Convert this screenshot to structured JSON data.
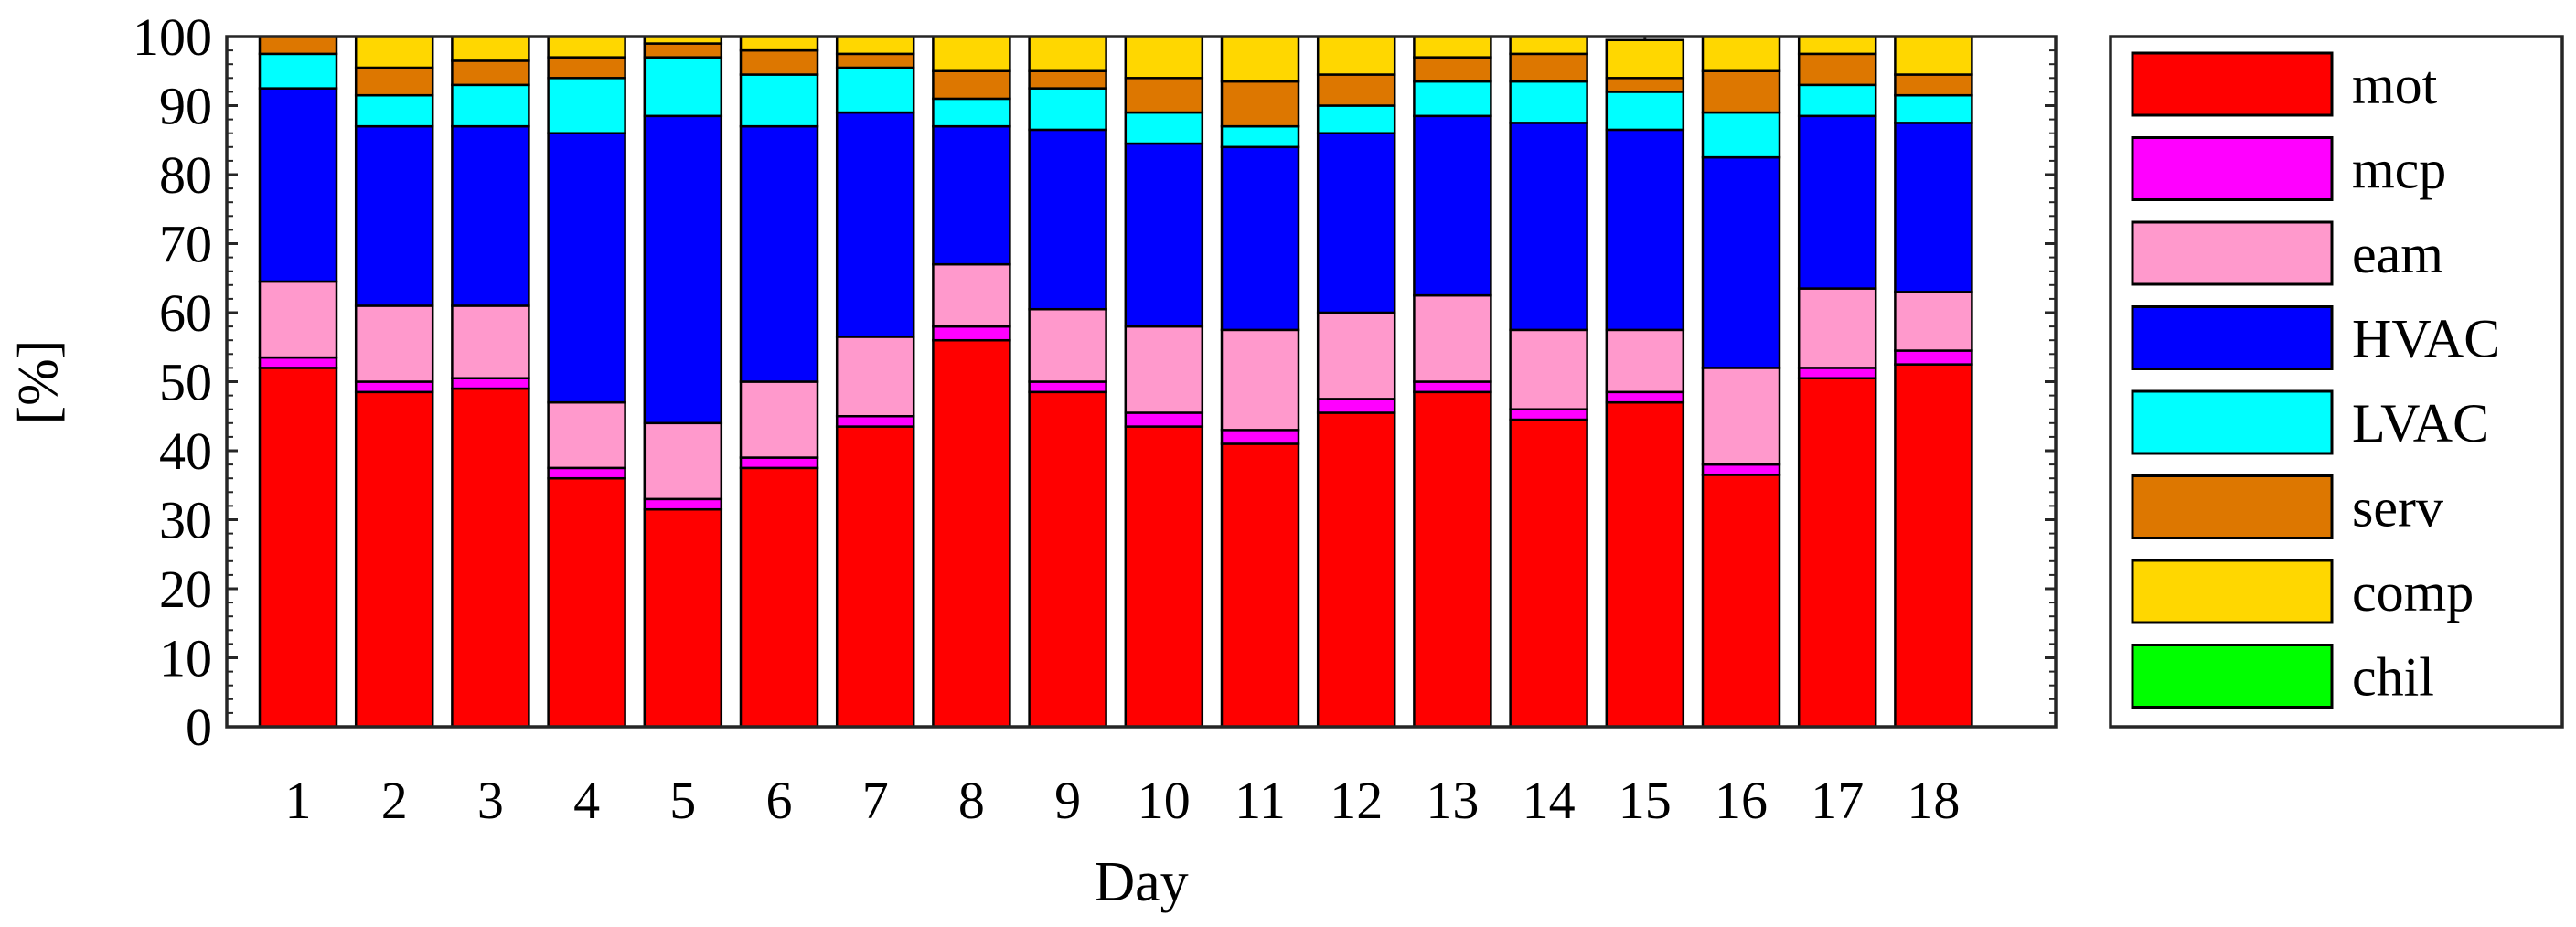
{
  "chart_data": {
    "type": "bar",
    "stacked": true,
    "title": "",
    "xlabel": "Day",
    "ylabel": "[%]",
    "ylim": [
      0,
      100
    ],
    "yticks": [
      "0",
      "10",
      "20",
      "30",
      "40",
      "50",
      "60",
      "70",
      "80",
      "90",
      "100"
    ],
    "categories": [
      "1",
      "2",
      "3",
      "4",
      "5",
      "6",
      "7",
      "8",
      "9",
      "10",
      "11",
      "12",
      "13",
      "14",
      "15",
      "16",
      "17",
      "18"
    ],
    "legend_position": "outside-right",
    "series": [
      {
        "name": "mot",
        "color": "#ff0000",
        "values": [
          52,
          48.5,
          49,
          36,
          31.5,
          37.5,
          43.5,
          56,
          48.5,
          43.5,
          41,
          45.5,
          48.5,
          44.5,
          47,
          36.5,
          50.5,
          52.5
        ]
      },
      {
        "name": "mcp",
        "color": "#ff00ff",
        "values": [
          1.5,
          1.5,
          1.5,
          1.5,
          1.5,
          1.5,
          1.5,
          2,
          1.5,
          2,
          2,
          2,
          1.5,
          1.5,
          1.5,
          1.5,
          1.5,
          2
        ]
      },
      {
        "name": "eam",
        "color": "#ff99cc",
        "values": [
          11,
          11,
          10.5,
          9.5,
          11,
          11,
          11.5,
          9,
          10.5,
          12.5,
          14.5,
          12.5,
          12.5,
          11.5,
          9,
          14,
          11.5,
          8.5
        ]
      },
      {
        "name": "HVAC",
        "color": "#0000ff",
        "values": [
          28,
          26,
          26,
          39,
          44.5,
          37,
          32.5,
          20,
          26,
          26.5,
          26.5,
          26,
          26,
          30,
          29,
          30.5,
          25,
          24.5
        ]
      },
      {
        "name": "LVAC",
        "color": "#00ffff",
        "values": [
          5,
          4.5,
          6,
          8,
          8.5,
          7.5,
          6.5,
          4,
          6,
          4.5,
          3,
          4,
          5,
          6,
          5.5,
          6.5,
          4.5,
          4
        ]
      },
      {
        "name": "serv",
        "color": "#dd7700",
        "values": [
          2.5,
          4,
          3.5,
          3,
          2,
          3.5,
          2,
          4,
          2.5,
          5,
          6.5,
          4.5,
          3.5,
          4,
          2,
          6,
          4.5,
          3
        ]
      },
      {
        "name": "comp",
        "color": "#ffd700",
        "values": [
          0,
          4.5,
          3.5,
          3,
          1,
          2,
          2.5,
          5,
          5,
          6,
          6.5,
          5.5,
          3,
          2.5,
          5.5,
          5,
          2.5,
          5.5
        ]
      },
      {
        "name": "chil",
        "color": "#00ff00",
        "values": [
          0,
          0,
          0,
          0,
          0,
          0,
          0,
          0,
          0,
          0,
          0,
          0,
          0,
          0,
          0,
          0,
          0,
          0
        ]
      }
    ]
  }
}
